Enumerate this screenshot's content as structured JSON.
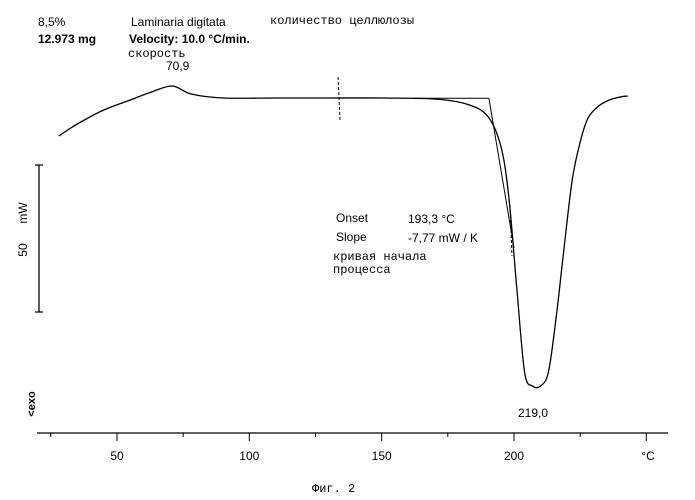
{
  "header": {
    "percent": "8,5%",
    "mass": "12.973 mg",
    "sample": "Laminaria digitata",
    "quantity_label": "количество целлюлозы",
    "velocity": "Velocity: 10.0 °C/min.",
    "velocity_ru": "скорость"
  },
  "scale_bar": {
    "unit": "mW",
    "value": "50"
  },
  "exo_label": "<exo",
  "annotations": {
    "peak1_label": "70,9",
    "peak2_label": "219,0",
    "onset_label": "Onset",
    "onset_value": "193,3 °C",
    "slope_label": "Slope",
    "slope_value": "-7,77 mW / K",
    "tangent_note_line1": "кривая начала",
    "tangent_note_line2": "процесса"
  },
  "figure_caption": "Фиг. 2",
  "chart_data": {
    "type": "line",
    "x_unit": "°C",
    "xlim": [
      27,
      246
    ],
    "x_ticks": [
      50,
      100,
      150,
      200
    ],
    "x_tick_labels": [
      "50",
      "100",
      "150",
      "200",
      "°C"
    ],
    "grid": false,
    "series": [
      {
        "x": [
          28,
          35,
          45,
          55,
          63,
          70.9,
          78,
          90,
          110,
          130,
          150,
          170,
          182,
          190,
          195,
          198,
          201,
          204,
          207,
          210,
          213,
          216,
          219,
          222,
          225,
          228,
          232,
          236,
          240,
          243
        ],
        "y": [
          0,
          6,
          13,
          18,
          22,
          25,
          21,
          19,
          19,
          19,
          19,
          18.5,
          16,
          10,
          -5,
          -30,
          -75,
          -118,
          -125,
          -125,
          -118,
          -90,
          -55,
          -22,
          -3,
          9,
          15,
          18,
          19.5,
          20
        ]
      }
    ],
    "markers": [
      {
        "name": "peak",
        "x": 70.9
      },
      {
        "name": "peak",
        "x": 219.0
      },
      {
        "name": "onset",
        "x": 193.3
      }
    ]
  }
}
